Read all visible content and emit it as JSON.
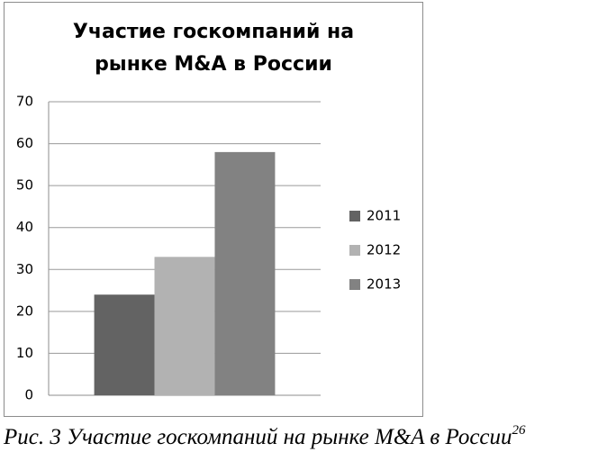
{
  "chart_data": {
    "type": "bar",
    "title": "Участие госкомпаний на рынке M&A в России",
    "categories": [
      null
    ],
    "series": [
      {
        "name": "2011",
        "color": "#636363",
        "values": [
          24
        ]
      },
      {
        "name": "2012",
        "color": "#b2b2b2",
        "values": [
          33
        ]
      },
      {
        "name": "2013",
        "color": "#828282",
        "values": [
          58
        ]
      }
    ],
    "ylim": [
      0,
      70
    ],
    "yticks": [
      0,
      10,
      20,
      30,
      40,
      50,
      60,
      70
    ],
    "grid": true,
    "legend": "right"
  },
  "caption": {
    "text": "Рис. 3 Участие госкомпаний на рынке M&A в России",
    "footnote": "26"
  }
}
